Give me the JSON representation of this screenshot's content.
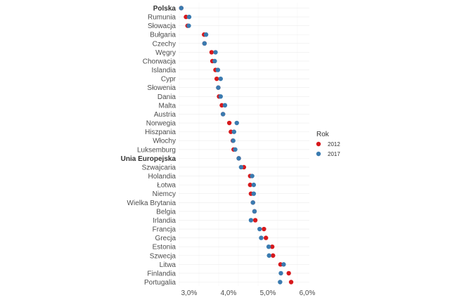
{
  "chart_data": {
    "type": "scatter",
    "subtype": "dot-plot",
    "title": "",
    "xlabel": "",
    "ylabel": "",
    "xlim": [
      2.7,
      6.05
    ],
    "x_ticks": [
      3.0,
      4.0,
      5.0,
      6.0
    ],
    "x_tick_labels": [
      "3,0%",
      "4,0%",
      "5,0%",
      "6,0%"
    ],
    "grid": true,
    "legend": {
      "title": "Rok",
      "placement": "right"
    },
    "bold_categories": [
      "Polska",
      "Unia Europejska"
    ],
    "categories": [
      "Polska",
      "Rumunia",
      "Słowacja",
      "Bułgaria",
      "Czechy",
      "Węgry",
      "Chorwacja",
      "Islandia",
      "Cypr",
      "Słowenia",
      "Dania",
      "Malta",
      "Austria",
      "Norwegia",
      "Hiszpania",
      "Włochy",
      "Luksemburg",
      "Unia Europejska",
      "Szwajcaria",
      "Holandia",
      "Łotwa",
      "Niemcy",
      "Wielka Brytania",
      "Belgia",
      "Irlandia",
      "Francja",
      "Grecja",
      "Estonia",
      "Szwecja",
      "Litwa",
      "Finlandia",
      "Portugalia"
    ],
    "series": [
      {
        "name": "2012",
        "color": "#d7191c",
        "values": [
          2.8,
          2.92,
          2.96,
          3.38,
          3.39,
          3.57,
          3.59,
          3.67,
          3.7,
          3.74,
          3.76,
          3.83,
          3.86,
          4.02,
          4.06,
          4.11,
          4.13,
          4.26,
          4.39,
          4.55,
          4.55,
          4.57,
          4.62,
          4.66,
          4.68,
          4.9,
          4.95,
          5.11,
          5.13,
          5.32,
          5.53,
          5.59
        ]
      },
      {
        "name": "2017",
        "color": "#3a7bb0",
        "values": [
          2.8,
          3.0,
          2.99,
          3.43,
          3.39,
          3.67,
          3.65,
          3.73,
          3.8,
          3.74,
          3.8,
          3.91,
          3.86,
          4.21,
          4.14,
          4.12,
          4.17,
          4.26,
          4.32,
          4.6,
          4.64,
          4.64,
          4.62,
          4.66,
          4.57,
          4.79,
          4.83,
          5.02,
          5.03,
          5.4,
          5.33,
          5.31
        ]
      }
    ]
  }
}
